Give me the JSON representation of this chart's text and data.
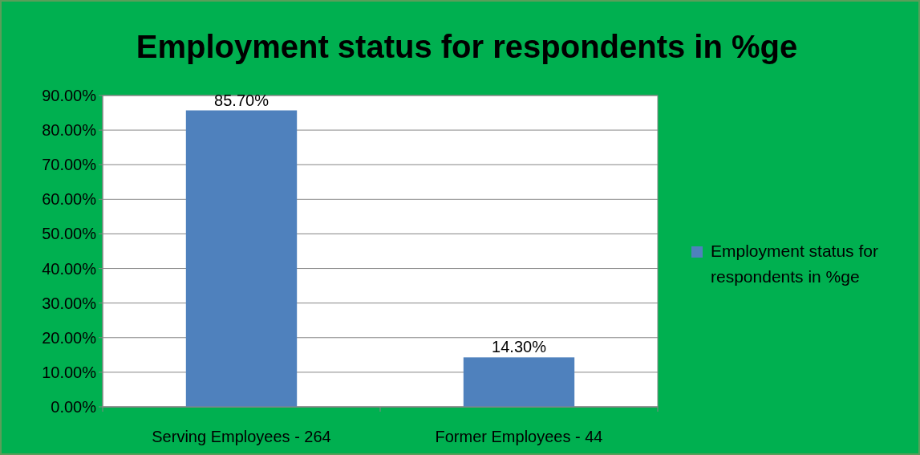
{
  "chart_data": {
    "type": "bar",
    "title": "Employment status for respondents in %ge",
    "categories": [
      "Serving Employees - 264",
      "Former Employees - 44"
    ],
    "series": [
      {
        "name": "Employment status for respondents in %ge",
        "color": "#4f81bd",
        "values": [
          85.7,
          14.3
        ],
        "value_labels": [
          "85.70%",
          "14.30%"
        ]
      }
    ],
    "ylim": [
      0,
      90
    ],
    "yticks": [
      {
        "value": 0,
        "label": "0.00%"
      },
      {
        "value": 10,
        "label": "10.00%"
      },
      {
        "value": 20,
        "label": "20.00%"
      },
      {
        "value": 30,
        "label": "30.00%"
      },
      {
        "value": 40,
        "label": "40.00%"
      },
      {
        "value": 50,
        "label": "50.00%"
      },
      {
        "value": 60,
        "label": "60.00%"
      },
      {
        "value": 70,
        "label": "70.00%"
      },
      {
        "value": 80,
        "label": "80.00%"
      },
      {
        "value": 90,
        "label": "90.00%"
      }
    ],
    "grid": "y",
    "legend": "right"
  }
}
